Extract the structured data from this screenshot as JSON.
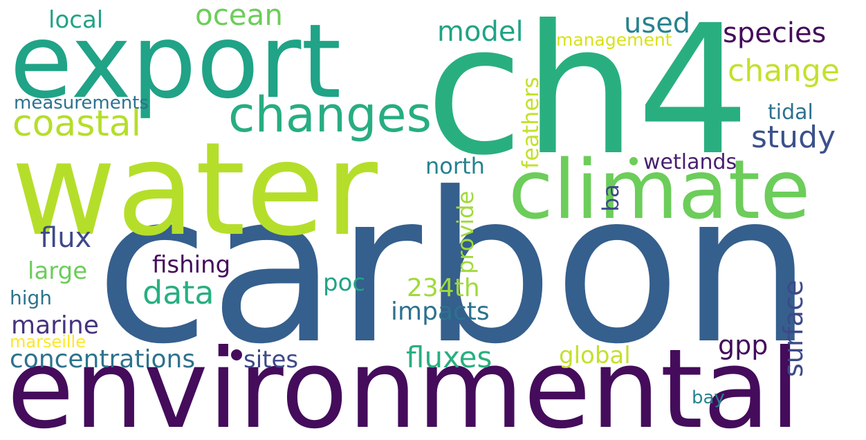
{
  "words": [
    {
      "text": "carbon",
      "color": "#355f8d"
    },
    {
      "text": "environmental",
      "color": "#440c5b"
    },
    {
      "text": "water",
      "color": "#b5de2b"
    },
    {
      "text": "ch4",
      "color": "#29af7f"
    },
    {
      "text": "export",
      "color": "#20a386"
    },
    {
      "text": "climate",
      "color": "#6ccd5a"
    },
    {
      "text": "changes",
      "color": "#27ad81"
    },
    {
      "text": "coastal",
      "color": "#b5de2b"
    },
    {
      "text": "ocean",
      "color": "#6ccd5a"
    },
    {
      "text": "model",
      "color": "#20a386"
    },
    {
      "text": "used",
      "color": "#26828e"
    },
    {
      "text": "species",
      "color": "#440c5b"
    },
    {
      "text": "change",
      "color": "#c4e02c"
    },
    {
      "text": "local",
      "color": "#20a386"
    },
    {
      "text": "management",
      "color": "#d8e219"
    },
    {
      "text": "measurements",
      "color": "#2c728e"
    },
    {
      "text": "study",
      "color": "#3b518b"
    },
    {
      "text": "tidal",
      "color": "#2c728e"
    },
    {
      "text": "feathers",
      "color": "#c4e02c"
    },
    {
      "text": "north",
      "color": "#26828e"
    },
    {
      "text": "wetlands",
      "color": "#481f70"
    },
    {
      "text": "provide",
      "color": "#a0da39"
    },
    {
      "text": "ba",
      "color": "#3e4989"
    },
    {
      "text": "flux",
      "color": "#3e4989"
    },
    {
      "text": "fishing",
      "color": "#440c5b"
    },
    {
      "text": "large",
      "color": "#6ccd5a"
    },
    {
      "text": "data",
      "color": "#29af7f"
    },
    {
      "text": "poc",
      "color": "#20a386"
    },
    {
      "text": "234th",
      "color": "#a0da39"
    },
    {
      "text": "high",
      "color": "#2c728e"
    },
    {
      "text": "impacts",
      "color": "#2c728e"
    },
    {
      "text": "surface",
      "color": "#3e4989"
    },
    {
      "text": "marine",
      "color": "#46327e"
    },
    {
      "text": "marseille",
      "color": "#fde725"
    },
    {
      "text": "gpp",
      "color": "#440c5b"
    },
    {
      "text": "concentrations",
      "color": "#2c728e"
    },
    {
      "text": "sites",
      "color": "#3e4989"
    },
    {
      "text": "fluxes",
      "color": "#29af7f"
    },
    {
      "text": "global",
      "color": "#c4e02c"
    },
    {
      "text": "bay",
      "color": "#26828e"
    }
  ]
}
